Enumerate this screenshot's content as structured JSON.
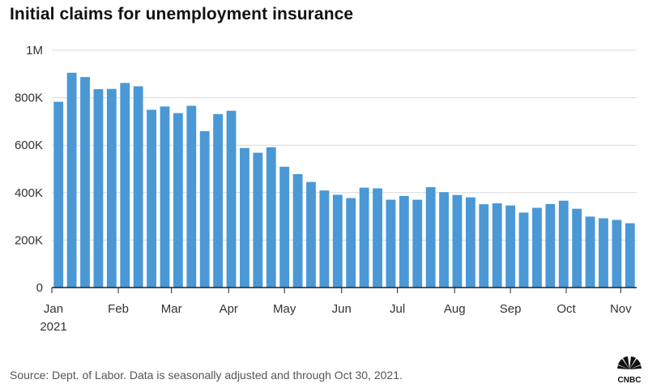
{
  "title": "Initial claims for unemployment insurance",
  "source": "Source: Dept. of Labor. Data is seasonally adjusted and through Oct 30, 2021.",
  "logo_text": "CNBC",
  "colors": {
    "bar": "#4a98d6",
    "grid": "#d9d9d9",
    "axis": "#222222",
    "text": "#333333"
  },
  "chart_data": {
    "type": "bar",
    "ylim": [
      0,
      1000000
    ],
    "yticks": [
      {
        "value": 0,
        "label": "0"
      },
      {
        "value": 200000,
        "label": "200K"
      },
      {
        "value": 400000,
        "label": "400K"
      },
      {
        "value": 600000,
        "label": "600K"
      },
      {
        "value": 800000,
        "label": "800K"
      },
      {
        "value": 1000000,
        "label": "1M"
      }
    ],
    "xticks": [
      {
        "index": 0,
        "label": "Jan",
        "sublabel": "2021"
      },
      {
        "index": 4.5,
        "label": "Feb"
      },
      {
        "index": 8.5,
        "label": "Mar"
      },
      {
        "index": 12.8,
        "label": "Apr"
      },
      {
        "index": 17,
        "label": "May"
      },
      {
        "index": 21.3,
        "label": "Jun"
      },
      {
        "index": 25.5,
        "label": "Jul"
      },
      {
        "index": 29.8,
        "label": "Aug"
      },
      {
        "index": 34,
        "label": "Sep"
      },
      {
        "index": 38.2,
        "label": "Oct"
      },
      {
        "index": 42.3,
        "label": "Nov"
      }
    ],
    "values": [
      783000,
      905000,
      887000,
      836000,
      837000,
      862000,
      848000,
      749000,
      763000,
      735000,
      766000,
      659000,
      731000,
      745000,
      588000,
      568000,
      591000,
      509000,
      478000,
      445000,
      409000,
      391000,
      377000,
      421000,
      418000,
      370000,
      386000,
      370000,
      423000,
      402000,
      390000,
      380000,
      351000,
      355000,
      346000,
      316000,
      336000,
      352000,
      366000,
      332000,
      299000,
      292000,
      285000,
      271000
    ],
    "grid": true
  }
}
